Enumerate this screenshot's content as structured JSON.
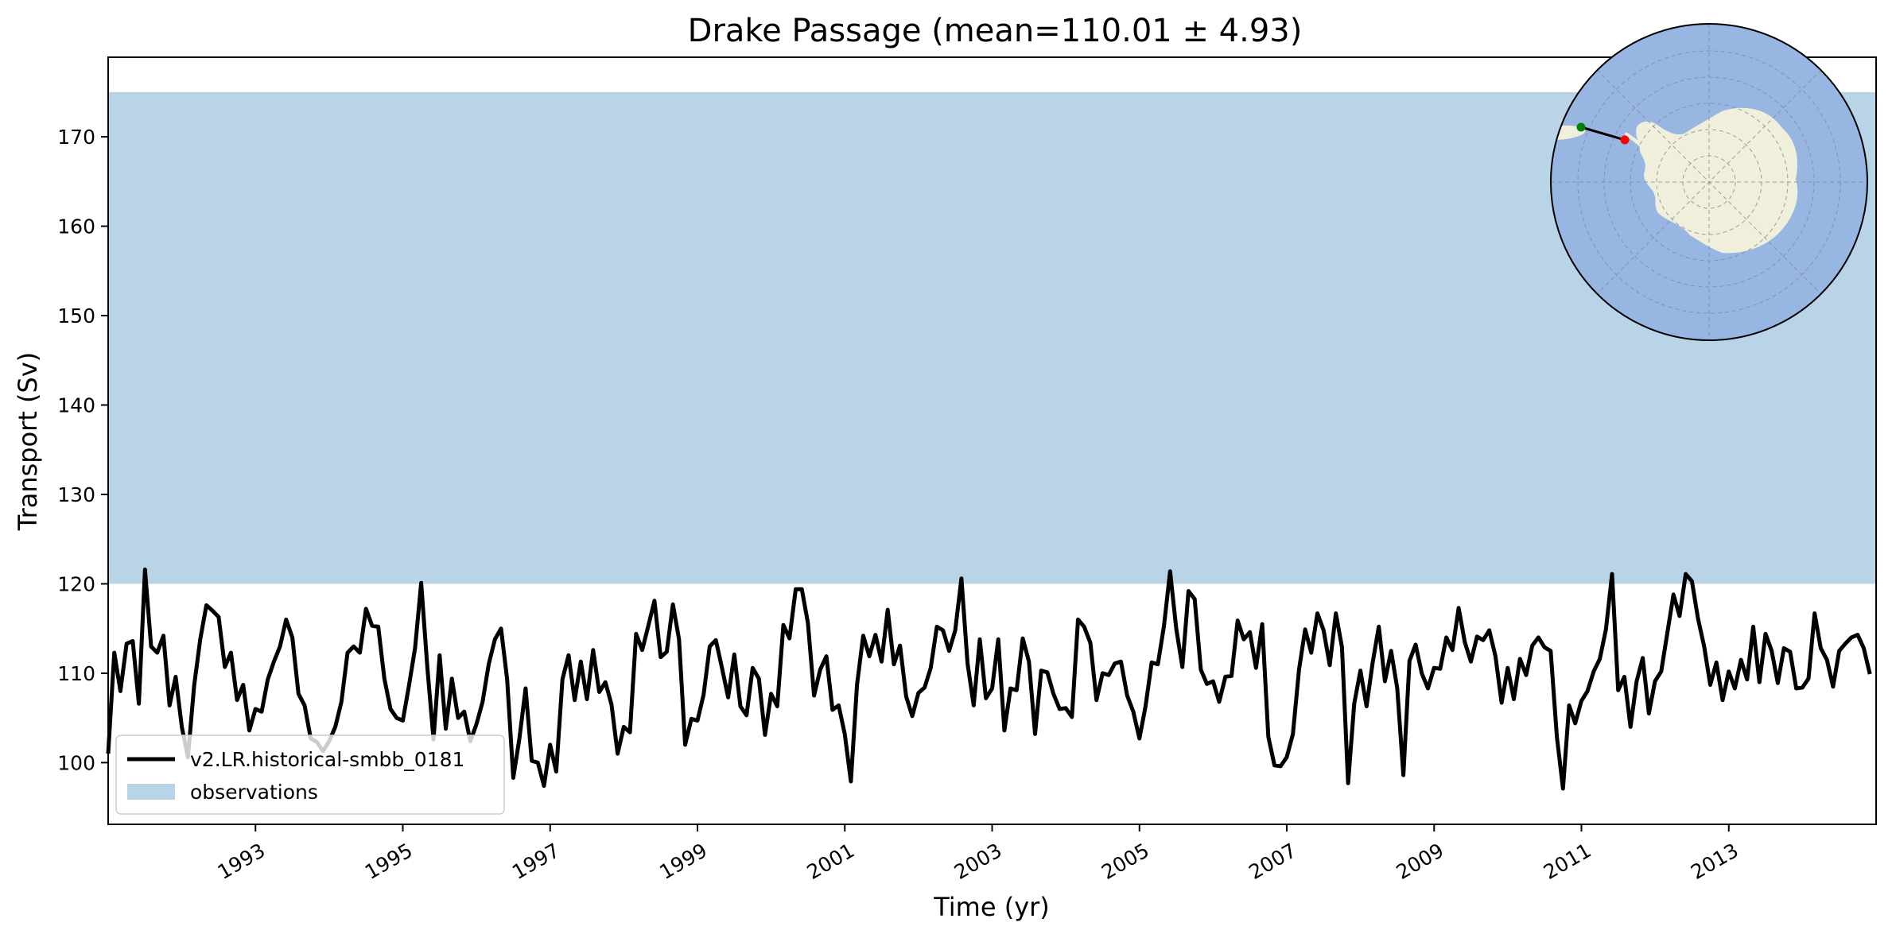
{
  "chart_data": {
    "type": "line",
    "title": "Drake Passage (mean=110.01 ± 4.93)",
    "xlabel": "Time (yr)",
    "ylabel": "Transport (Sv)",
    "xlim": [
      1991.0,
      2015.0
    ],
    "ylim": [
      93.1,
      178.9
    ],
    "x_tick_labels": [
      "1993",
      "1995",
      "1997",
      "1999",
      "2001",
      "2003",
      "2005",
      "2007",
      "2009",
      "2011",
      "2013"
    ],
    "x_tick_values": [
      1993,
      1995,
      1997,
      1999,
      2001,
      2003,
      2005,
      2007,
      2009,
      2011,
      2013
    ],
    "y_tick_labels": [
      "100",
      "110",
      "120",
      "130",
      "140",
      "150",
      "160",
      "170"
    ],
    "y_tick_values": [
      100,
      110,
      120,
      130,
      140,
      150,
      160,
      170
    ],
    "grid": false,
    "legend_position": "lower-left",
    "observations_band": {
      "label": "observations",
      "ymin": 120,
      "ymax": 175,
      "color": "#bad4e7"
    },
    "series": [
      {
        "name": "v2.LR.historical-smbb_0181",
        "color": "#000000",
        "x_start": 1991.0,
        "x_step": 0.08333,
        "values": [
          101,
          112.3,
          108,
          113.3,
          113.6,
          106.6,
          121.6,
          113,
          112.3,
          114.2,
          106.4,
          109.6,
          104,
          100.6,
          108.6,
          113.8,
          117.6,
          117,
          116.3,
          110.7,
          112.3,
          107,
          108.7,
          103.6,
          106,
          105.7,
          109.3,
          111.3,
          113,
          116,
          114,
          107.7,
          106.4,
          102.7,
          102.3,
          101.3,
          102.4,
          104,
          106.8,
          112.3,
          113,
          112.3,
          117.2,
          115.3,
          115.2,
          109.4,
          106,
          105,
          104.7,
          108.6,
          112.8,
          120.1,
          110.6,
          102.6,
          112,
          103.8,
          109.4,
          105,
          105.7,
          102.4,
          104.3,
          106.8,
          111,
          113.8,
          115,
          109.3,
          98.3,
          102.7,
          108.3,
          100.2,
          100,
          97.4,
          102,
          99,
          109.3,
          112,
          107,
          111.3,
          107.1,
          112.6,
          107.9,
          109,
          106.5,
          101,
          104,
          103.4,
          114.4,
          112.6,
          115.3,
          118.1,
          111.8,
          112.4,
          117.7,
          113.8,
          102,
          104.9,
          104.7,
          107.6,
          113,
          113.7,
          110.6,
          107.3,
          112.1,
          106.3,
          105.3,
          110.6,
          109.4,
          103.1,
          107.7,
          106.3,
          115.4,
          113.9,
          119.4,
          119.4,
          115.6,
          107.5,
          110.4,
          111.9,
          105.9,
          106.4,
          103.2,
          97.9,
          108.7,
          114.2,
          111.9,
          114.3,
          111.3,
          117.1,
          111,
          113.1,
          107.4,
          105.2,
          107.8,
          108.4,
          110.6,
          115.2,
          114.8,
          112.5,
          114.8,
          120.6,
          111.1,
          106.4,
          113.8,
          107.2,
          108.3,
          113.8,
          103.6,
          108.3,
          108.1,
          113.9,
          111.3,
          103.2,
          110.3,
          110.1,
          107.7,
          106,
          106.1,
          105.1,
          116,
          115.2,
          113.4,
          107,
          110,
          109.8,
          111.1,
          111.3,
          107.5,
          105.7,
          102.7,
          106.3,
          111.2,
          111,
          115.3,
          121.4,
          115,
          110.7,
          119.2,
          118.3,
          110.4,
          108.8,
          109.1,
          106.8,
          109.6,
          109.7,
          115.9,
          113.8,
          114.6,
          110.6,
          115.5,
          102.9,
          99.7,
          99.6,
          100.6,
          103.2,
          110.4,
          114.9,
          112.3,
          116.7,
          114.8,
          110.9,
          116.7,
          112.9,
          97.7,
          106.6,
          110.3,
          106.3,
          111.2,
          115.2,
          109.1,
          112.5,
          108.3,
          98.6,
          111.4,
          113.2,
          110,
          108.3,
          110.6,
          110.5,
          114,
          112.6,
          117.3,
          113.5,
          111.3,
          114.1,
          113.7,
          114.8,
          111.9,
          106.7,
          110.6,
          107.1,
          111.6,
          109.8,
          113.1,
          114,
          112.9,
          112.5,
          102.9,
          97.1,
          106.4,
          104.4,
          106.9,
          108,
          110.2,
          111.6,
          114.9,
          121.1,
          108.1,
          109.6,
          104,
          109.1,
          111.7,
          105.5,
          109.1,
          110.2,
          114.5,
          118.8,
          116.4,
          121.1,
          120.3,
          116.1,
          113,
          108.7,
          111.2,
          107,
          110.2,
          108.3,
          111.5,
          109.3,
          115.2,
          109,
          114.4,
          112.5,
          108.9,
          112.8,
          112.4,
          108.3,
          108.4,
          109.4,
          116.7,
          112.8,
          111.5,
          108.5,
          112.5,
          113.3,
          114,
          114.3,
          112.8,
          109.9
        ]
      }
    ]
  },
  "inset_map": {
    "ocean_color": "#97b6e1",
    "land_color": "#efefdb",
    "start_marker_color": "#008000",
    "end_marker_color": "#ff0000"
  }
}
